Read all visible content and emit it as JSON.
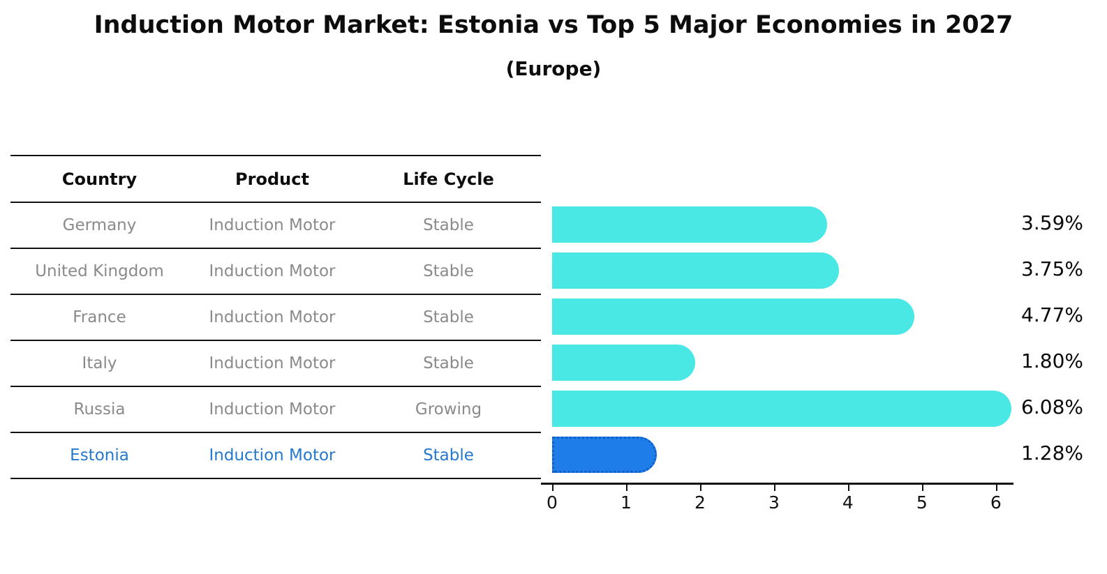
{
  "title": "Induction Motor Market: Estonia vs Top 5 Major Economies in 2027",
  "subtitle": "(Europe)",
  "table": {
    "headers": [
      "Country",
      "Product",
      "Life Cycle"
    ],
    "rows": [
      {
        "country": "Germany",
        "product": "Induction Motor",
        "life_cycle": "Stable",
        "highlighted": false
      },
      {
        "country": "United Kingdom",
        "product": "Induction Motor",
        "life_cycle": "Stable",
        "highlighted": false
      },
      {
        "country": "France",
        "product": "Induction Motor",
        "life_cycle": "Stable",
        "highlighted": false
      },
      {
        "country": "Italy",
        "product": "Induction Motor",
        "life_cycle": "Stable",
        "highlighted": false
      },
      {
        "country": "Russia",
        "product": "Induction Motor",
        "life_cycle": "Growing",
        "highlighted": false
      },
      {
        "country": "Estonia",
        "product": "Induction Motor",
        "life_cycle": "Stable",
        "highlighted": true
      }
    ]
  },
  "chart_data": {
    "type": "bar",
    "orientation": "horizontal",
    "title": "Induction Motor Market: Estonia vs Top 5 Major Economies in 2027",
    "subtitle": "(Europe)",
    "categories": [
      "Germany",
      "United Kingdom",
      "France",
      "Italy",
      "Russia",
      "Estonia"
    ],
    "values": [
      3.59,
      3.75,
      4.77,
      1.8,
      6.08,
      1.28
    ],
    "value_labels": [
      "3.59%",
      "3.75%",
      "4.77%",
      "1.80%",
      "6.08%",
      "1.28%"
    ],
    "xlim": [
      0,
      6.2
    ],
    "xticks": [
      0,
      1,
      2,
      3,
      4,
      5,
      6
    ],
    "grid": false,
    "legend": "none",
    "highlight_index": 5
  },
  "colors": {
    "bar_teal": "#4AE8E4",
    "bar_highlight_blue": "#1E7DE8",
    "highlight_border_blue": "#0E5FC6",
    "row_text_gray": "#8A8A8A",
    "highlight_text_blue": "#2478CD",
    "ink": "#0D0D0D"
  }
}
